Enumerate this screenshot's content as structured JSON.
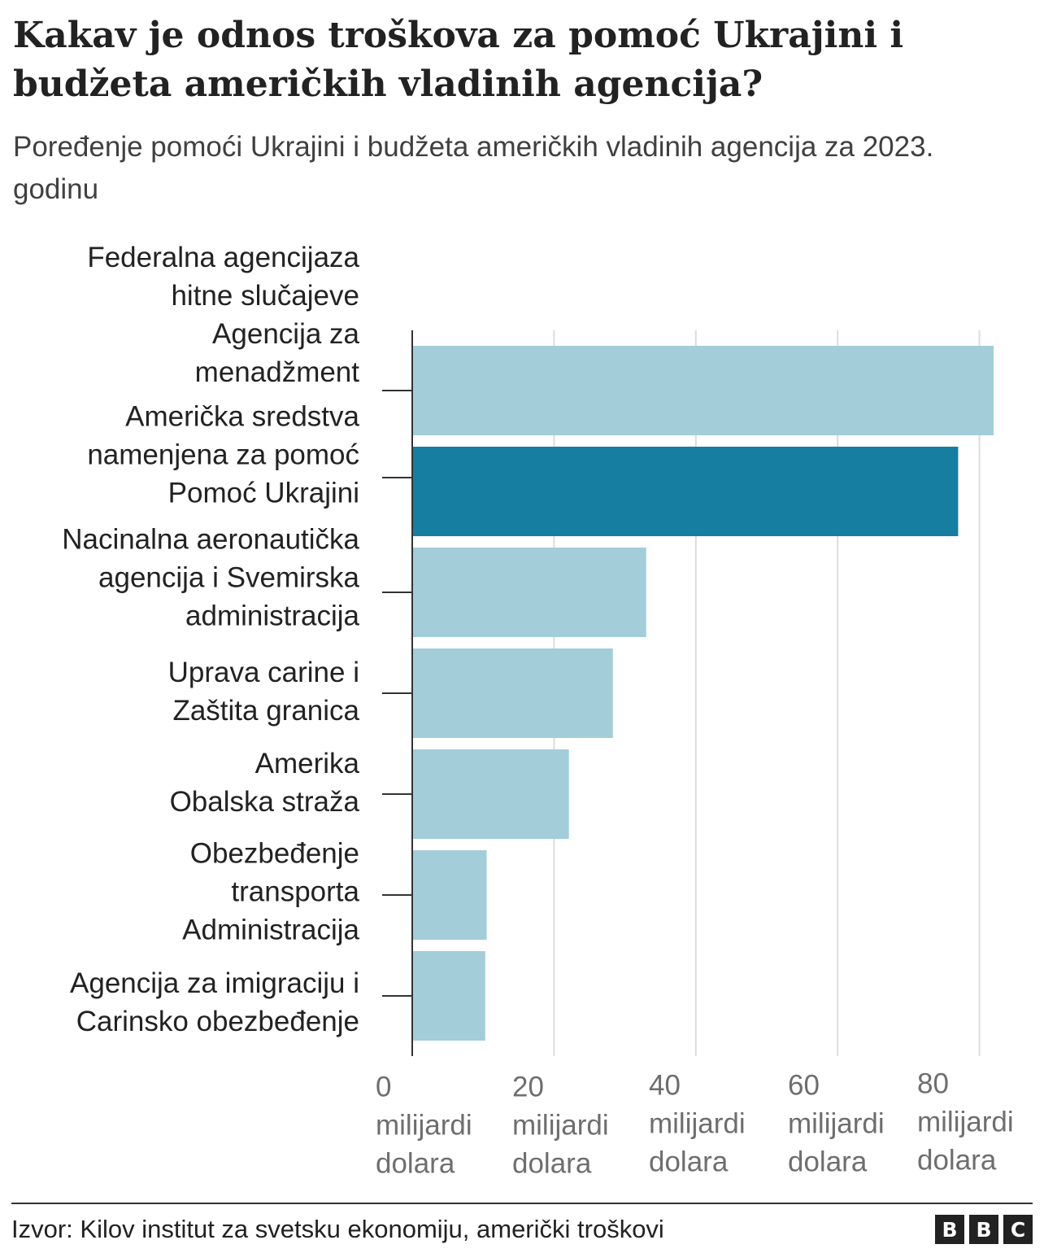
{
  "title": "Kakav je odnos troškova za pomoć Ukrajini i budžeta američkih vladinih agencija?",
  "subtitle": "Poređenje pomoći Ukrajini i budžeta američkih vladinih agencija za 2023. godinu",
  "source": "Izvor: Kilov institut za svetsku ekonomiju, američki troškovi",
  "logo": [
    "B",
    "B",
    "C"
  ],
  "colors": {
    "default_bar": "#a3cdd9",
    "highlight_bar": "#167ea0",
    "grid": "#dcdcdc",
    "axis": "#333333"
  },
  "chart_data": {
    "type": "bar",
    "orientation": "horizontal",
    "title": "Kakav je odnos troškova za pomoć Ukrajini i budžeta američkih vladinih agencija?",
    "xlabel": "milijardi dolara",
    "xlim": [
      0,
      85
    ],
    "grid": true,
    "x_ticks": [
      {
        "value": 0,
        "label": [
          "0",
          "milijardi",
          "dolara"
        ]
      },
      {
        "value": 20,
        "label": [
          "20",
          "milijardi",
          "dolara"
        ]
      },
      {
        "value": 40,
        "label": [
          "40",
          "milijardi",
          "dolara"
        ]
      },
      {
        "value": 60,
        "label": [
          "60",
          "milijardi",
          "dolara"
        ]
      },
      {
        "value": 80,
        "label": [
          "80",
          "milijardi",
          "dolara"
        ]
      }
    ],
    "categories": [
      {
        "label": [
          "Federalna agencijaza",
          "hitne slučajeve",
          "Agencija za ",
          "menadžment "
        ],
        "value": 82,
        "highlight": false
      },
      {
        "label": [
          "Američka sredstva",
          "namenjena za pomoć",
          "Pomoć Ukrajini"
        ],
        "value": 77,
        "highlight": true
      },
      {
        "label": [
          "Nacinalna aeronautička",
          "agencija i Svemirska",
          "administracija"
        ],
        "value": 33,
        "highlight": false
      },
      {
        "label": [
          "Uprava carine i",
          "Zaštita granica"
        ],
        "value": 28.3,
        "highlight": false
      },
      {
        "label": [
          "Amerika",
          "Obalska straža"
        ],
        "value": 22.1,
        "highlight": false
      },
      {
        "label": [
          "Obezbeđenje",
          "transporta",
          "Administracija"
        ],
        "value": 10.5,
        "highlight": false
      },
      {
        "label": [
          "Agencija za imigraciju i",
          "Carinsko obezbeđenje"
        ],
        "value": 10.3,
        "highlight": false
      }
    ]
  }
}
